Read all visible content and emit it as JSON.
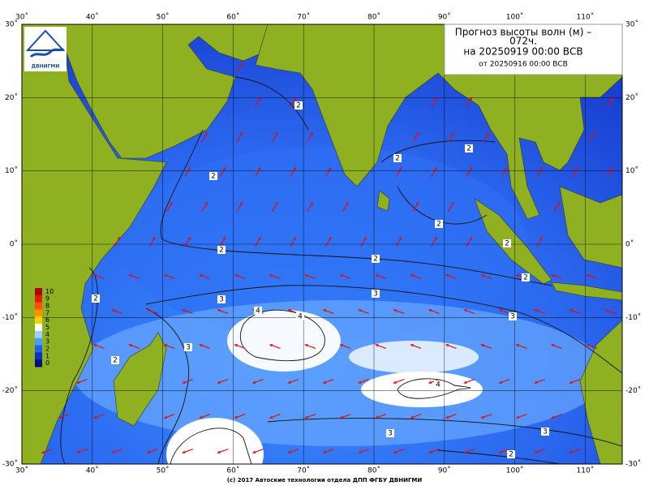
{
  "header": {
    "title_line1": "Прогноз высоты волн (м) –",
    "title_line2": "072ч.",
    "title_line3": "на 20250919 00:00 ВСВ",
    "title_line4": "от 20250916 00:00 ВСВ"
  },
  "logo": {
    "text": "ДВНИГМИ"
  },
  "map": {
    "lon_ticks": [
      {
        "value": 30,
        "label": "30˚"
      },
      {
        "value": 40,
        "label": "40˚"
      },
      {
        "value": 50,
        "label": "50˚"
      },
      {
        "value": 60,
        "label": "60˚"
      },
      {
        "value": 70,
        "label": "70˚"
      },
      {
        "value": 80,
        "label": "80˚"
      },
      {
        "value": 90,
        "label": "90˚"
      },
      {
        "value": 100,
        "label": "100˚"
      },
      {
        "value": 110,
        "label": "110˚"
      }
    ],
    "lat_ticks": [
      {
        "value": 30,
        "label": "30˚"
      },
      {
        "value": 20,
        "label": "20˚"
      },
      {
        "value": 10,
        "label": "10˚"
      },
      {
        "value": 0,
        "label": "0˚"
      },
      {
        "value": -10,
        "label": "-10˚"
      },
      {
        "value": -20,
        "label": "-20˚"
      },
      {
        "value": -30,
        "label": "-30˚"
      }
    ],
    "colorbar_ticks": [
      10,
      9,
      8,
      7,
      6,
      5,
      4,
      3,
      2,
      1,
      0
    ],
    "contour_labels": [
      2,
      2,
      2,
      2,
      2,
      2,
      2,
      2,
      2,
      2,
      3,
      3,
      4,
      4,
      3,
      3,
      2,
      4,
      3,
      3,
      2
    ]
  },
  "footer": "(c) 2017 Автоские технологии отдела ДПП ФГБУ ДВНИГМИ"
}
